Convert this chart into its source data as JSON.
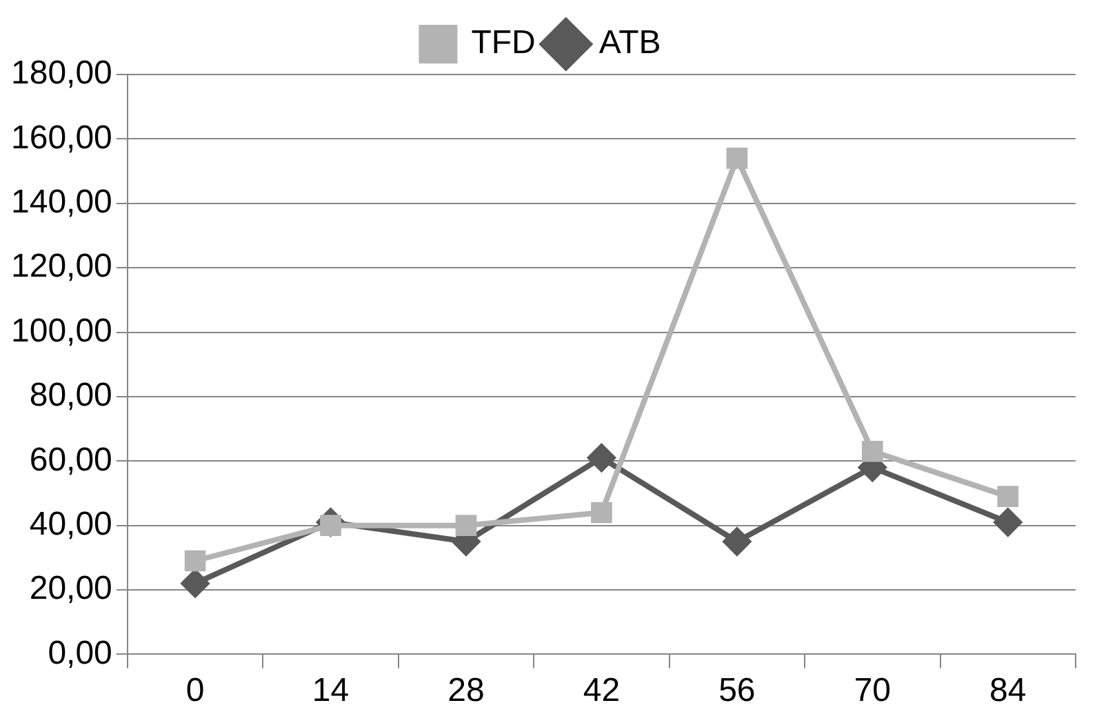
{
  "chart_data": {
    "type": "line",
    "categories": [
      "0",
      "14",
      "28",
      "42",
      "56",
      "70",
      "84"
    ],
    "series": [
      {
        "name": "ATB",
        "color": "#595959",
        "marker": "diamond",
        "values": [
          22,
          41,
          35,
          61,
          35,
          58,
          41
        ]
      },
      {
        "name": "TFD",
        "color": "#b3b3b3",
        "marker": "square",
        "values": [
          29,
          40,
          40,
          44,
          154,
          63,
          49
        ]
      }
    ],
    "ylim": [
      0,
      180
    ],
    "yticks": [
      {
        "value": 0,
        "label": "0,00"
      },
      {
        "value": 20,
        "label": "20,00"
      },
      {
        "value": 40,
        "label": "40,00"
      },
      {
        "value": 60,
        "label": "60,00"
      },
      {
        "value": 80,
        "label": "80,00"
      },
      {
        "value": 100,
        "label": "100,00"
      },
      {
        "value": 120,
        "label": "120,00"
      },
      {
        "value": 140,
        "label": "140,00"
      },
      {
        "value": 160,
        "label": "160,00"
      },
      {
        "value": 180,
        "label": "180,00"
      }
    ],
    "grid": "y",
    "legend": "top",
    "line_style": "solid"
  }
}
